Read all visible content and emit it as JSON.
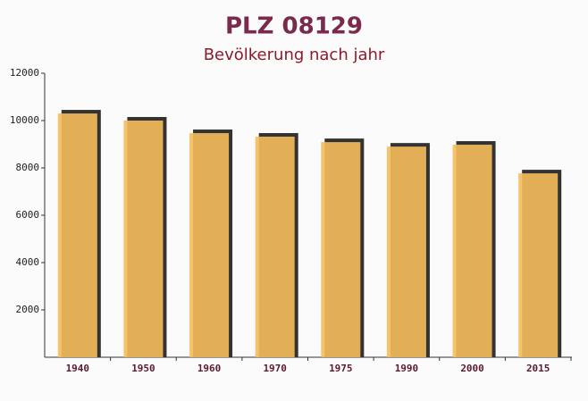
{
  "chart_data": {
    "type": "bar",
    "title": "PLZ 08129",
    "subtitle": "Bevölkerung nach jahr",
    "categories": [
      "1940",
      "1950",
      "1960",
      "1970",
      "1975",
      "1990",
      "2000",
      "2015"
    ],
    "values": [
      10300,
      10000,
      9470,
      9320,
      9090,
      8900,
      8980,
      7770
    ],
    "color": "#f5bd5b",
    "ylim": [
      0,
      12000
    ],
    "yticks": [
      2000,
      4000,
      6000,
      8000,
      10000,
      12000
    ],
    "grid": false
  }
}
